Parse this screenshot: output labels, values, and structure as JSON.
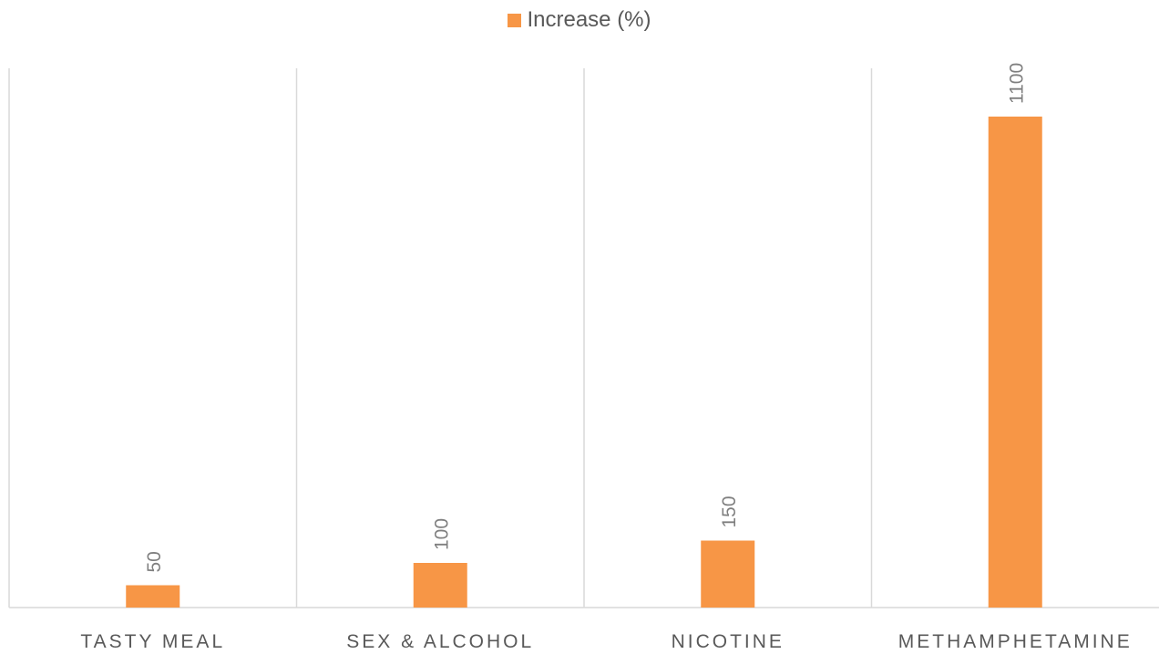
{
  "chart_data": {
    "type": "bar",
    "categories": [
      "TASTY MEAL",
      "SEX & ALCOHOL",
      "NICOTINE",
      "METHAMPHETAMINE"
    ],
    "series": [
      {
        "name": "Increase (%)",
        "values": [
          50,
          100,
          150,
          1100
        ],
        "color": "#f79646"
      }
    ],
    "title": "",
    "xlabel": "",
    "ylabel": "",
    "ylim": [
      0,
      1100
    ],
    "grid": "vertical-category-separators",
    "legend": "top-center",
    "data_labels": "rotated-vertical"
  }
}
